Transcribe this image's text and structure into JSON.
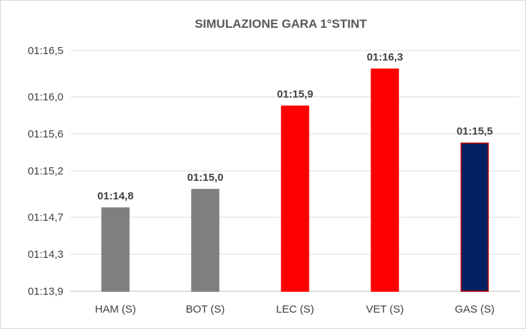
{
  "chart_data": {
    "type": "bar",
    "title": "SIMULAZIONE GARA 1°STINT",
    "xlabel": "",
    "ylabel": "",
    "categories": [
      "HAM (S)",
      "BOT (S)",
      "LEC (S)",
      "VET (S)",
      "GAS (S)"
    ],
    "values": [
      74.8,
      75.0,
      75.9,
      76.3,
      75.5
    ],
    "data_labels": [
      "01:14,8",
      "01:15,0",
      "01:15,9",
      "01:16,3",
      "01:15,5"
    ],
    "bar_colors": [
      "#7f7f7f",
      "#7f7f7f",
      "#ff0000",
      "#ff0000",
      "#002060"
    ],
    "bar_border_colors": [
      "#7f7f7f",
      "#7f7f7f",
      "#ff0000",
      "#ff0000",
      "#c00000"
    ],
    "ylim": [
      73.9,
      76.5
    ],
    "y_ticks": [
      {
        "value": 73.9,
        "label": "01:13,9"
      },
      {
        "value": 74.3,
        "label": "01:14,3"
      },
      {
        "value": 74.7,
        "label": "01:14,7"
      },
      {
        "value": 75.2,
        "label": "01:15,2"
      },
      {
        "value": 75.6,
        "label": "01:15,6"
      },
      {
        "value": 76.0,
        "label": "01:16,0"
      },
      {
        "value": 76.5,
        "label": "01:16,5"
      }
    ],
    "grid": true,
    "legend": "none"
  }
}
